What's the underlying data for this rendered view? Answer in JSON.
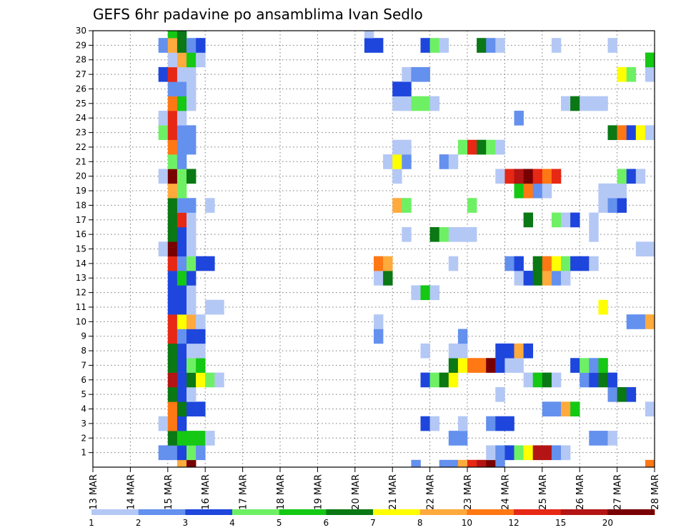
{
  "chart_data": {
    "type": "heatmap",
    "title": "GEFS 6hr padavine po ansamblima Ivan Sedlo",
    "x_ticks": [
      "13 MAR",
      "14 MAR",
      "15 MAR",
      "16 MAR",
      "17 MAR",
      "18 MAR",
      "19 MAR",
      "20 MAR",
      "21 MAR",
      "22 MAR",
      "23 MAR",
      "24 MAR",
      "25 MAR",
      "26 MAR",
      "27 MAR",
      "28 MAR"
    ],
    "x_unit": "day",
    "x_range": [
      0,
      15
    ],
    "y_ticks": [
      1,
      2,
      3,
      4,
      5,
      6,
      7,
      8,
      9,
      10,
      11,
      12,
      13,
      14,
      15,
      16,
      17,
      18,
      19,
      20,
      21,
      22,
      23,
      24,
      25,
      26,
      27,
      28,
      29,
      30
    ],
    "y_range": [
      0,
      30
    ],
    "grid": true,
    "colorbar": {
      "labels": [
        "1",
        "2",
        "3",
        "4",
        "5",
        "6",
        "7",
        "8",
        "10",
        "12",
        "15",
        "20"
      ],
      "colors": [
        "#b4c8f5",
        "#6490ee",
        "#1e46dc",
        "#6ef064",
        "#14c814",
        "#0a7814",
        "#ffff00",
        "#ffaa3c",
        "#ff7814",
        "#e62814",
        "#b41414",
        "#780000"
      ]
    },
    "cells": [
      [
        0,
        2.25,
        7
      ],
      [
        0,
        2.5,
        11
      ],
      [
        0,
        8.5,
        1
      ],
      [
        0,
        9.25,
        1
      ],
      [
        0,
        9.5,
        1
      ],
      [
        0,
        9.75,
        7
      ],
      [
        0,
        10.0,
        9
      ],
      [
        0,
        10.25,
        10
      ],
      [
        0,
        10.5,
        11
      ],
      [
        0,
        10.75,
        1
      ],
      [
        0,
        14.75,
        8
      ],
      [
        1,
        1.75,
        1
      ],
      [
        1,
        2.0,
        1
      ],
      [
        1,
        2.25,
        2
      ],
      [
        1,
        2.5,
        3
      ],
      [
        1,
        2.75,
        1
      ],
      [
        1,
        10.5,
        0
      ],
      [
        1,
        10.75,
        1
      ],
      [
        1,
        11.0,
        2
      ],
      [
        1,
        11.25,
        3
      ],
      [
        1,
        11.5,
        6
      ],
      [
        1,
        11.75,
        10
      ],
      [
        1,
        12.0,
        10
      ],
      [
        1,
        12.25,
        1
      ],
      [
        1,
        12.5,
        0
      ],
      [
        2,
        2.0,
        5
      ],
      [
        2,
        2.25,
        4
      ],
      [
        2,
        2.5,
        4
      ],
      [
        2,
        2.75,
        4
      ],
      [
        2,
        3.0,
        0
      ],
      [
        2,
        9.5,
        1
      ],
      [
        2,
        9.75,
        1
      ],
      [
        2,
        13.25,
        1
      ],
      [
        2,
        13.5,
        1
      ],
      [
        2,
        13.75,
        0
      ],
      [
        3,
        1.75,
        0
      ],
      [
        3,
        2.0,
        8
      ],
      [
        3,
        2.25,
        2
      ],
      [
        3,
        8.75,
        2
      ],
      [
        3,
        9.0,
        0
      ],
      [
        3,
        9.75,
        0
      ],
      [
        3,
        10.5,
        1
      ],
      [
        3,
        10.75,
        2
      ],
      [
        3,
        11.0,
        2
      ],
      [
        4,
        2.0,
        8
      ],
      [
        4,
        2.25,
        5
      ],
      [
        4,
        2.5,
        2
      ],
      [
        4,
        2.75,
        2
      ],
      [
        4,
        12.0,
        1
      ],
      [
        4,
        12.25,
        1
      ],
      [
        4,
        12.5,
        7
      ],
      [
        4,
        12.75,
        4
      ],
      [
        4,
        14.75,
        0
      ],
      [
        5,
        2.0,
        5
      ],
      [
        5,
        2.25,
        2
      ],
      [
        5,
        2.5,
        0
      ],
      [
        5,
        10.75,
        0
      ],
      [
        5,
        13.75,
        1
      ],
      [
        5,
        14.0,
        5
      ],
      [
        5,
        14.25,
        2
      ],
      [
        6,
        2.0,
        10
      ],
      [
        6,
        2.25,
        2
      ],
      [
        6,
        2.5,
        5
      ],
      [
        6,
        2.75,
        6
      ],
      [
        6,
        3.0,
        3
      ],
      [
        6,
        3.25,
        0
      ],
      [
        6,
        8.75,
        2
      ],
      [
        6,
        9.0,
        3
      ],
      [
        6,
        9.25,
        5
      ],
      [
        6,
        9.5,
        6
      ],
      [
        6,
        11.5,
        0
      ],
      [
        6,
        11.75,
        4
      ],
      [
        6,
        12.0,
        5
      ],
      [
        6,
        12.25,
        0
      ],
      [
        6,
        13.0,
        1
      ],
      [
        6,
        13.25,
        2
      ],
      [
        6,
        13.5,
        5
      ],
      [
        6,
        13.75,
        2
      ],
      [
        7,
        2.0,
        5
      ],
      [
        7,
        2.25,
        2
      ],
      [
        7,
        2.5,
        3
      ],
      [
        7,
        2.75,
        4
      ],
      [
        7,
        9.5,
        5
      ],
      [
        7,
        9.75,
        6
      ],
      [
        7,
        10.0,
        8
      ],
      [
        7,
        10.25,
        8
      ],
      [
        7,
        10.5,
        11
      ],
      [
        7,
        10.75,
        2
      ],
      [
        7,
        11.0,
        0
      ],
      [
        7,
        11.25,
        0
      ],
      [
        7,
        12.75,
        2
      ],
      [
        7,
        13.0,
        3
      ],
      [
        7,
        13.25,
        1
      ],
      [
        7,
        13.5,
        4
      ],
      [
        8,
        2.0,
        5
      ],
      [
        8,
        2.25,
        2
      ],
      [
        8,
        2.5,
        0
      ],
      [
        8,
        2.75,
        0
      ],
      [
        8,
        8.75,
        0
      ],
      [
        8,
        9.5,
        0
      ],
      [
        8,
        9.75,
        0
      ],
      [
        8,
        10.75,
        2
      ],
      [
        8,
        11.0,
        2
      ],
      [
        8,
        11.25,
        7
      ],
      [
        8,
        11.5,
        2
      ],
      [
        9,
        2.0,
        9
      ],
      [
        9,
        2.25,
        1
      ],
      [
        9,
        2.5,
        2
      ],
      [
        9,
        2.75,
        2
      ],
      [
        9,
        7.5,
        1
      ],
      [
        9,
        9.75,
        1
      ],
      [
        10,
        2.0,
        9
      ],
      [
        10,
        2.25,
        6
      ],
      [
        10,
        2.5,
        7
      ],
      [
        10,
        2.75,
        0
      ],
      [
        10,
        7.5,
        0
      ],
      [
        10,
        14.25,
        1
      ],
      [
        10,
        14.5,
        1
      ],
      [
        10,
        14.75,
        7
      ],
      [
        11,
        2.0,
        2
      ],
      [
        11,
        2.25,
        2
      ],
      [
        11,
        2.5,
        0
      ],
      [
        11,
        3.0,
        0
      ],
      [
        11,
        3.25,
        0
      ],
      [
        11,
        13.5,
        6
      ],
      [
        12,
        2.0,
        2
      ],
      [
        12,
        2.25,
        2
      ],
      [
        12,
        2.5,
        0
      ],
      [
        12,
        8.5,
        0
      ],
      [
        12,
        8.75,
        4
      ],
      [
        12,
        9.0,
        0
      ],
      [
        13,
        2.0,
        2
      ],
      [
        13,
        2.25,
        4
      ],
      [
        13,
        2.5,
        2
      ],
      [
        13,
        7.5,
        0
      ],
      [
        13,
        7.75,
        5
      ],
      [
        13,
        11.25,
        0
      ],
      [
        13,
        11.5,
        2
      ],
      [
        13,
        11.75,
        5
      ],
      [
        13,
        12.0,
        7
      ],
      [
        13,
        12.25,
        1
      ],
      [
        13,
        12.5,
        0
      ],
      [
        14,
        2.0,
        9
      ],
      [
        14,
        2.25,
        1
      ],
      [
        14,
        2.5,
        3
      ],
      [
        14,
        2.75,
        2
      ],
      [
        14,
        3.0,
        2
      ],
      [
        14,
        7.5,
        8
      ],
      [
        14,
        7.75,
        7
      ],
      [
        14,
        9.5,
        0
      ],
      [
        14,
        11.0,
        1
      ],
      [
        14,
        11.25,
        2
      ],
      [
        14,
        11.75,
        5
      ],
      [
        14,
        12.0,
        8
      ],
      [
        14,
        12.25,
        6
      ],
      [
        14,
        12.5,
        3
      ],
      [
        14,
        12.75,
        2
      ],
      [
        14,
        13.0,
        2
      ],
      [
        14,
        13.25,
        0
      ],
      [
        15,
        1.75,
        0
      ],
      [
        15,
        2.0,
        11
      ],
      [
        15,
        2.25,
        2
      ],
      [
        15,
        2.5,
        0
      ],
      [
        15,
        14.5,
        0
      ],
      [
        15,
        14.75,
        0
      ],
      [
        16,
        2.0,
        5
      ],
      [
        16,
        2.25,
        2
      ],
      [
        16,
        2.5,
        0
      ],
      [
        16,
        8.25,
        0
      ],
      [
        16,
        9.0,
        5
      ],
      [
        16,
        9.25,
        3
      ],
      [
        16,
        9.5,
        0
      ],
      [
        16,
        9.75,
        0
      ],
      [
        16,
        10.0,
        0
      ],
      [
        16,
        13.25,
        0
      ],
      [
        17,
        2.0,
        5
      ],
      [
        17,
        2.25,
        9
      ],
      [
        17,
        2.5,
        0
      ],
      [
        17,
        11.5,
        5
      ],
      [
        17,
        12.25,
        3
      ],
      [
        17,
        12.5,
        0
      ],
      [
        17,
        12.75,
        2
      ],
      [
        17,
        13.25,
        0
      ],
      [
        18,
        2.0,
        5
      ],
      [
        18,
        2.25,
        1
      ],
      [
        18,
        2.5,
        1
      ],
      [
        18,
        3.0,
        0
      ],
      [
        18,
        8.0,
        7
      ],
      [
        18,
        8.25,
        3
      ],
      [
        18,
        10.0,
        3
      ],
      [
        18,
        13.5,
        0
      ],
      [
        18,
        13.75,
        1
      ],
      [
        18,
        14.0,
        2
      ],
      [
        19,
        2.0,
        7
      ],
      [
        19,
        2.25,
        3
      ],
      [
        19,
        11.25,
        4
      ],
      [
        19,
        11.5,
        8
      ],
      [
        19,
        11.75,
        1
      ],
      [
        19,
        12.0,
        0
      ],
      [
        19,
        13.5,
        0
      ],
      [
        19,
        13.75,
        0
      ],
      [
        19,
        14.0,
        0
      ],
      [
        20,
        1.75,
        0
      ],
      [
        20,
        2.0,
        11
      ],
      [
        20,
        2.25,
        3
      ],
      [
        20,
        2.5,
        5
      ],
      [
        20,
        8.0,
        0
      ],
      [
        20,
        10.75,
        0
      ],
      [
        20,
        11.0,
        9
      ],
      [
        20,
        11.25,
        10
      ],
      [
        20,
        11.5,
        11
      ],
      [
        20,
        11.75,
        9
      ],
      [
        20,
        12.0,
        8
      ],
      [
        20,
        12.25,
        9
      ],
      [
        20,
        14.0,
        3
      ],
      [
        20,
        14.25,
        2
      ],
      [
        20,
        14.5,
        0
      ],
      [
        21,
        2.0,
        3
      ],
      [
        21,
        2.25,
        1
      ],
      [
        21,
        7.75,
        0
      ],
      [
        21,
        8.0,
        6
      ],
      [
        21,
        8.25,
        1
      ],
      [
        21,
        9.25,
        1
      ],
      [
        21,
        9.5,
        0
      ],
      [
        22,
        2.0,
        8
      ],
      [
        22,
        2.25,
        1
      ],
      [
        22,
        2.5,
        1
      ],
      [
        22,
        8.0,
        0
      ],
      [
        22,
        8.25,
        0
      ],
      [
        22,
        9.75,
        3
      ],
      [
        22,
        10.0,
        9
      ],
      [
        22,
        10.25,
        5
      ],
      [
        22,
        10.5,
        3
      ],
      [
        22,
        10.75,
        0
      ],
      [
        23,
        1.75,
        3
      ],
      [
        23,
        2.0,
        9
      ],
      [
        23,
        2.25,
        1
      ],
      [
        23,
        2.5,
        1
      ],
      [
        23,
        13.75,
        5
      ],
      [
        23,
        14.0,
        8
      ],
      [
        23,
        14.25,
        2
      ],
      [
        23,
        14.5,
        6
      ],
      [
        23,
        14.75,
        0
      ],
      [
        24,
        1.75,
        0
      ],
      [
        24,
        2.0,
        9
      ],
      [
        24,
        2.25,
        0
      ],
      [
        24,
        11.25,
        1
      ],
      [
        25,
        2.0,
        8
      ],
      [
        25,
        2.25,
        4
      ],
      [
        25,
        2.5,
        0
      ],
      [
        25,
        8.0,
        0
      ],
      [
        25,
        8.25,
        0
      ],
      [
        25,
        8.5,
        3
      ],
      [
        25,
        8.75,
        3
      ],
      [
        25,
        9.0,
        0
      ],
      [
        25,
        12.5,
        0
      ],
      [
        25,
        12.75,
        5
      ],
      [
        25,
        13.0,
        0
      ],
      [
        25,
        13.25,
        0
      ],
      [
        25,
        13.5,
        0
      ],
      [
        26,
        2.0,
        1
      ],
      [
        26,
        2.25,
        1
      ],
      [
        26,
        2.5,
        0
      ],
      [
        26,
        8.0,
        2
      ],
      [
        26,
        8.25,
        2
      ],
      [
        27,
        1.75,
        2
      ],
      [
        27,
        2.0,
        9
      ],
      [
        27,
        2.25,
        0
      ],
      [
        27,
        2.5,
        0
      ],
      [
        27,
        8.25,
        0
      ],
      [
        27,
        8.5,
        1
      ],
      [
        27,
        8.75,
        1
      ],
      [
        27,
        14.0,
        6
      ],
      [
        27,
        14.25,
        3
      ],
      [
        27,
        14.75,
        0
      ],
      [
        28,
        2.0,
        0
      ],
      [
        28,
        2.25,
        7
      ],
      [
        28,
        2.5,
        4
      ],
      [
        28,
        2.75,
        0
      ],
      [
        28,
        14.75,
        4
      ],
      [
        29,
        1.75,
        1
      ],
      [
        29,
        2.0,
        7
      ],
      [
        29,
        2.25,
        5
      ],
      [
        29,
        2.5,
        1
      ],
      [
        29,
        2.75,
        2
      ],
      [
        29,
        7.25,
        2
      ],
      [
        29,
        7.5,
        2
      ],
      [
        29,
        8.75,
        2
      ],
      [
        29,
        9.0,
        3
      ],
      [
        29,
        9.25,
        0
      ],
      [
        29,
        10.25,
        5
      ],
      [
        29,
        10.5,
        1
      ],
      [
        29,
        10.75,
        0
      ],
      [
        29,
        12.25,
        0
      ],
      [
        29,
        13.75,
        0
      ],
      [
        30,
        2.0,
        4
      ],
      [
        30,
        2.25,
        5
      ],
      [
        30,
        7.25,
        0
      ]
    ]
  }
}
